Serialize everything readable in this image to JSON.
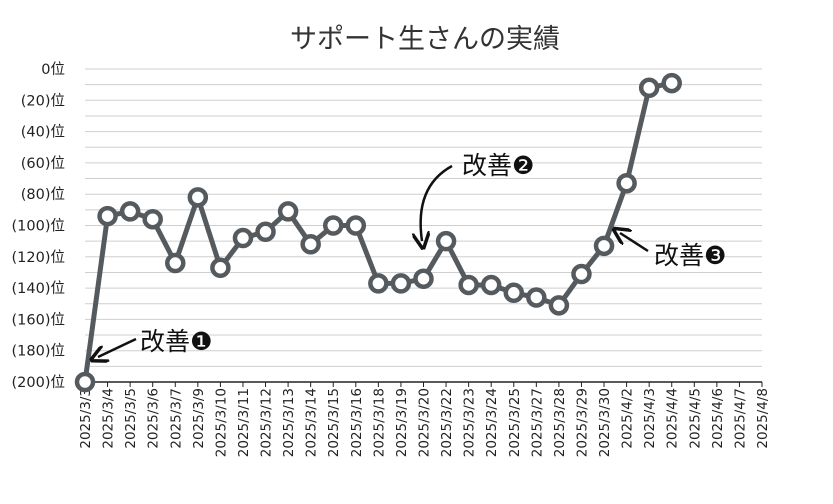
{
  "chart_data": {
    "type": "line",
    "title": "サポート生さんの実績",
    "xlabel": "",
    "ylabel": "",
    "ylim": [
      -200,
      0
    ],
    "grid": true,
    "legend": "none",
    "line_color": "#555a5e",
    "marker_fill": "#ffffff",
    "yticks": [
      {
        "value": 0,
        "label": "0位"
      },
      {
        "value": -20,
        "label": "(20)位"
      },
      {
        "value": -40,
        "label": "(40)位"
      },
      {
        "value": -60,
        "label": "(60)位"
      },
      {
        "value": -80,
        "label": "(80)位"
      },
      {
        "value": -100,
        "label": "(100)位"
      },
      {
        "value": -120,
        "label": "(120)位"
      },
      {
        "value": -140,
        "label": "(140)位"
      },
      {
        "value": -160,
        "label": "(160)位"
      },
      {
        "value": -180,
        "label": "(180)位"
      },
      {
        "value": -200,
        "label": "(200)位"
      }
    ],
    "categories": [
      "2025/3/3",
      "2025/3/4",
      "2025/3/5",
      "2025/3/6",
      "2025/3/7",
      "2025/3/9",
      "2025/3/10",
      "2025/3/11",
      "2025/3/12",
      "2025/3/13",
      "2025/3/14",
      "2025/3/15",
      "2025/3/16",
      "2025/3/18",
      "2025/3/19",
      "2025/3/20",
      "2025/3/22",
      "2025/3/23",
      "2025/3/24",
      "2025/3/25",
      "2025/3/27",
      "2025/3/28",
      "2025/3/29",
      "2025/3/30",
      "2025/4/2",
      "2025/4/3",
      "2025/4/4",
      "2025/4/5",
      "2025/4/6",
      "2025/4/7",
      "2025/4/8"
    ],
    "series": [
      {
        "values": [
          -200,
          -94,
          -91,
          -96,
          -124,
          -82,
          -127,
          -108,
          -104,
          -91,
          -112,
          -100,
          -100,
          -137,
          -137,
          -134,
          -110,
          -138,
          -138,
          -143,
          -146,
          -151,
          -131,
          -113,
          -73,
          -12,
          -9,
          null,
          null,
          null,
          null
        ]
      }
    ],
    "annotations": [
      {
        "text": "改善❶",
        "at": "2025/3/3"
      },
      {
        "text": "改善❷",
        "at": "2025/3/20"
      },
      {
        "text": "改善❸",
        "at": "2025/3/30"
      }
    ]
  }
}
